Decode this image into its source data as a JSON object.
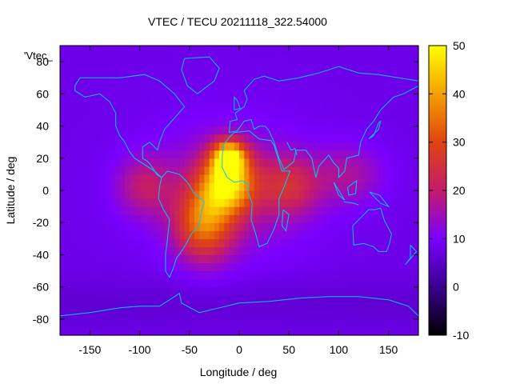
{
  "chart_data": {
    "type": "heatmap",
    "title": "VTEC / TECU 20211118_322.54000",
    "xlabel": "Longitude / deg",
    "ylabel": "Latitude / deg",
    "key_label": "'Vtec_",
    "xlim": [
      -180,
      180
    ],
    "ylim": [
      -90,
      90
    ],
    "x_ticks": [
      -150,
      -100,
      -50,
      0,
      50,
      100,
      150
    ],
    "y_ticks": [
      -80,
      -60,
      -40,
      -20,
      0,
      20,
      40,
      60,
      80
    ],
    "colorbar": {
      "range": [
        -10,
        50
      ],
      "ticks": [
        -10,
        0,
        10,
        20,
        30,
        40,
        50
      ],
      "palette": [
        "#000000",
        "#3a0090",
        "#7a00ff",
        "#c41b6b",
        "#e04410",
        "#f5a000",
        "#ffff00"
      ]
    },
    "field_peaks": [
      {
        "lon": -12,
        "lat": 5,
        "vtec": 48
      },
      {
        "lon": -10,
        "lat": 21,
        "vtec": 46
      },
      {
        "lon": -35,
        "lat": -20,
        "vtec": 38
      },
      {
        "lon": 50,
        "lat": 3,
        "vtec": 27
      },
      {
        "lon": 110,
        "lat": 10,
        "vtec": 22
      },
      {
        "lon": -95,
        "lat": 3,
        "vtec": 24
      }
    ],
    "background_vtec": 8
  },
  "colors": {
    "coastline": "#00c8ff",
    "frame": "#000000"
  }
}
